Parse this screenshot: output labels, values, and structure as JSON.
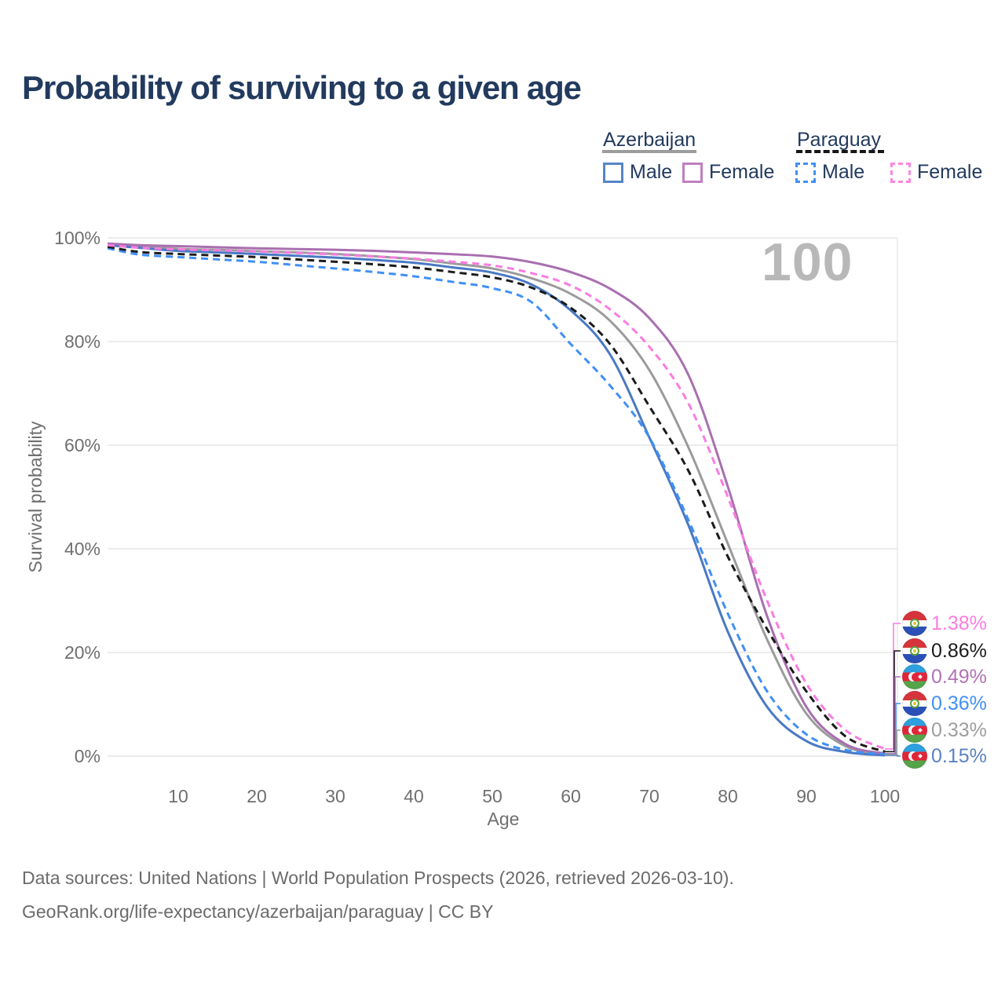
{
  "title": "Probability of surviving to a given age",
  "watermark_age": "100",
  "legend": {
    "groups": [
      {
        "label": "Azerbaijan",
        "line_style": "solid",
        "line_color": "#9c9c9c",
        "items": [
          {
            "label": "Male",
            "swatch_color": "#5585c8",
            "swatch_style": "solid"
          },
          {
            "label": "Female",
            "swatch_color": "#c07fc0",
            "swatch_style": "solid"
          }
        ]
      },
      {
        "label": "Paraguay",
        "line_style": "dashed",
        "line_color": "#161616",
        "items": [
          {
            "label": "Male",
            "swatch_color": "#4190f4",
            "swatch_style": "dashed"
          },
          {
            "label": "Female",
            "swatch_color": "#fb86e4",
            "swatch_style": "dashed"
          }
        ]
      }
    ]
  },
  "chart_data": {
    "type": "line",
    "title": "Probability of surviving to a given age",
    "xlabel": "Age",
    "ylabel": "Survival probability",
    "xlim": [
      1,
      100
    ],
    "ylim": [
      0,
      100
    ],
    "grid": "horizontal",
    "legend_position": "top-right",
    "x_ticks": [
      10,
      20,
      30,
      40,
      50,
      60,
      70,
      80,
      90,
      100
    ],
    "y_ticks": [
      {
        "value": 0,
        "label": "0%"
      },
      {
        "value": 20,
        "label": "20%"
      },
      {
        "value": 40,
        "label": "40%"
      },
      {
        "value": 60,
        "label": "60%"
      },
      {
        "value": 80,
        "label": "80%"
      },
      {
        "value": 100,
        "label": "100%"
      }
    ],
    "series": [
      {
        "name": "Azerbaijan",
        "country": "Azerbaijan",
        "sex": "both",
        "style": "solid",
        "color": "#9b9b9b",
        "points": [
          [
            1,
            98.75
          ],
          [
            5,
            98.5
          ],
          [
            10,
            97.9
          ],
          [
            15,
            97.7
          ],
          [
            20,
            97.45
          ],
          [
            25,
            97.2
          ],
          [
            30,
            96.9
          ],
          [
            35,
            96.45
          ],
          [
            40,
            95.9
          ],
          [
            45,
            95.05
          ],
          [
            50,
            94.1
          ],
          [
            55,
            92.2
          ],
          [
            60,
            89.2
          ],
          [
            65,
            84.0
          ],
          [
            70,
            74.5
          ],
          [
            75,
            59.5
          ],
          [
            80,
            41.0
          ],
          [
            85,
            22.5
          ],
          [
            90,
            8.2
          ],
          [
            95,
            1.9
          ],
          [
            100,
            0.33
          ]
        ]
      },
      {
        "name": "Azerbaijan Male",
        "country": "Azerbaijan",
        "sex": "male",
        "style": "solid",
        "color": "#4a79c4",
        "points": [
          [
            1,
            98.6
          ],
          [
            5,
            98.1
          ],
          [
            10,
            97.5
          ],
          [
            15,
            97.2
          ],
          [
            20,
            96.9
          ],
          [
            25,
            96.55
          ],
          [
            30,
            96.2
          ],
          [
            35,
            95.75
          ],
          [
            40,
            95.2
          ],
          [
            45,
            94.3
          ],
          [
            50,
            93.3
          ],
          [
            55,
            91.0
          ],
          [
            60,
            86.0
          ],
          [
            65,
            77.5
          ],
          [
            70,
            61.5
          ],
          [
            75,
            44.5
          ],
          [
            80,
            24.0
          ],
          [
            85,
            9.5
          ],
          [
            90,
            2.9
          ],
          [
            95,
            0.8
          ],
          [
            100,
            0.15
          ]
        ]
      },
      {
        "name": "Azerbaijan Female",
        "country": "Azerbaijan",
        "sex": "female",
        "style": "solid",
        "color": "#a96fb0",
        "points": [
          [
            1,
            98.9
          ],
          [
            5,
            98.6
          ],
          [
            10,
            98.4
          ],
          [
            15,
            98.2
          ],
          [
            20,
            98.0
          ],
          [
            25,
            97.85
          ],
          [
            30,
            97.7
          ],
          [
            35,
            97.5
          ],
          [
            40,
            97.2
          ],
          [
            45,
            96.85
          ],
          [
            50,
            96.4
          ],
          [
            55,
            95.3
          ],
          [
            60,
            93.4
          ],
          [
            65,
            90.2
          ],
          [
            70,
            84.5
          ],
          [
            75,
            73.5
          ],
          [
            80,
            52.0
          ],
          [
            85,
            27.0
          ],
          [
            90,
            9.5
          ],
          [
            95,
            2.3
          ],
          [
            100,
            0.49
          ]
        ]
      },
      {
        "name": "Paraguay Male",
        "country": "Paraguay",
        "sex": "male",
        "style": "dashed",
        "color": "#4090f5",
        "points": [
          [
            1,
            98.0
          ],
          [
            5,
            96.8
          ],
          [
            10,
            96.3
          ],
          [
            15,
            95.85
          ],
          [
            20,
            95.4
          ],
          [
            25,
            94.75
          ],
          [
            30,
            94.1
          ],
          [
            35,
            93.4
          ],
          [
            40,
            92.6
          ],
          [
            45,
            91.5
          ],
          [
            50,
            90.3
          ],
          [
            55,
            87.6
          ],
          [
            60,
            79.5
          ],
          [
            65,
            71.5
          ],
          [
            70,
            61.5
          ],
          [
            75,
            45.5
          ],
          [
            80,
            27.5
          ],
          [
            85,
            12.5
          ],
          [
            90,
            4.2
          ],
          [
            95,
            1.2
          ],
          [
            100,
            0.36
          ]
        ]
      },
      {
        "name": "Paraguay",
        "country": "Paraguay",
        "sex": "both",
        "style": "dashed",
        "color": "#1b1b1b",
        "points": [
          [
            1,
            98.3
          ],
          [
            5,
            97.3
          ],
          [
            10,
            96.9
          ],
          [
            15,
            96.6
          ],
          [
            20,
            96.3
          ],
          [
            25,
            95.85
          ],
          [
            30,
            95.4
          ],
          [
            35,
            94.9
          ],
          [
            40,
            94.3
          ],
          [
            45,
            93.4
          ],
          [
            50,
            92.4
          ],
          [
            55,
            90.4
          ],
          [
            60,
            86.5
          ],
          [
            65,
            79.5
          ],
          [
            70,
            67.5
          ],
          [
            75,
            55.0
          ],
          [
            80,
            38.5
          ],
          [
            85,
            24.5
          ],
          [
            90,
            12.5
          ],
          [
            95,
            3.8
          ],
          [
            100,
            0.86
          ]
        ]
      },
      {
        "name": "Paraguay Female",
        "country": "Paraguay",
        "sex": "female",
        "style": "dashed",
        "color": "#fb7ce1",
        "points": [
          [
            1,
            98.6
          ],
          [
            5,
            98.1
          ],
          [
            10,
            97.8
          ],
          [
            15,
            97.6
          ],
          [
            20,
            97.4
          ],
          [
            25,
            97.1
          ],
          [
            30,
            96.8
          ],
          [
            35,
            96.4
          ],
          [
            40,
            96.0
          ],
          [
            45,
            95.4
          ],
          [
            50,
            94.7
          ],
          [
            55,
            93.2
          ],
          [
            60,
            90.8
          ],
          [
            65,
            86.2
          ],
          [
            70,
            79.0
          ],
          [
            75,
            68.0
          ],
          [
            80,
            50.0
          ],
          [
            85,
            30.0
          ],
          [
            90,
            14.0
          ],
          [
            95,
            5.0
          ],
          [
            100,
            1.38
          ]
        ]
      }
    ]
  },
  "callouts": [
    {
      "flag": "paraguay",
      "label": "1.38%",
      "value": 1.38,
      "color": "#fb7ce1"
    },
    {
      "flag": "paraguay",
      "label": "0.86%",
      "value": 0.86,
      "color": "#1b1b1b"
    },
    {
      "flag": "azerbaijan",
      "label": "0.49%",
      "value": 0.49,
      "color": "#b173b5"
    },
    {
      "flag": "paraguay",
      "label": "0.36%",
      "value": 0.36,
      "color": "#4090f5"
    },
    {
      "flag": "azerbaijan",
      "label": "0.33%",
      "value": 0.33,
      "color": "#9e9e9e"
    },
    {
      "flag": "azerbaijan",
      "label": "0.15%",
      "value": 0.15,
      "color": "#5b82c4"
    }
  ],
  "footer": {
    "line1": "Data sources: United Nations | World Population Prospects (2026, retrieved 2026-03-10).",
    "line2": "GeoRank.org/life-expectancy/azerbaijan/paraguay | CC BY"
  }
}
